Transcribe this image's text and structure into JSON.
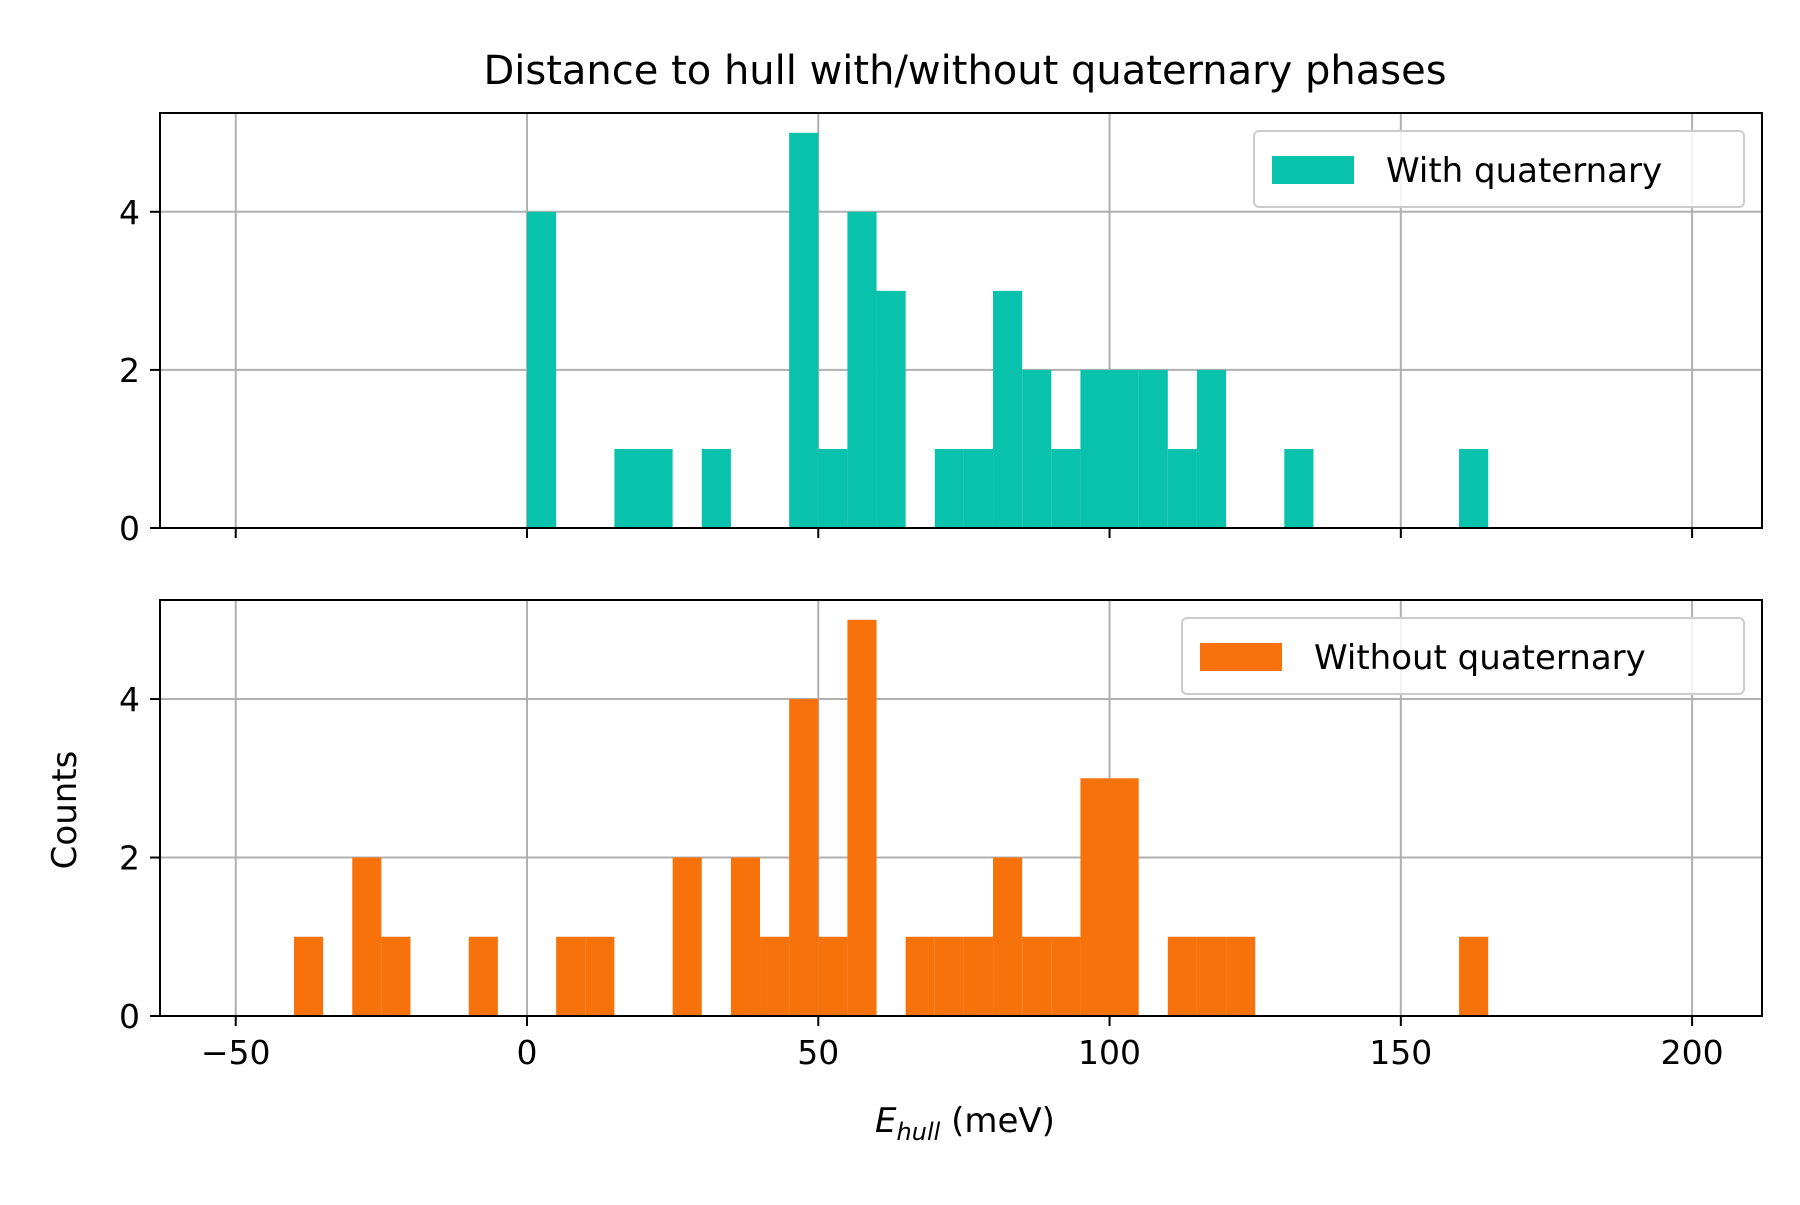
{
  "figure": {
    "title": "Distance to hull with/without quaternary phases",
    "xlabel_main": "E",
    "xlabel_sub": "hull",
    "xlabel_unit": " (meV)",
    "ylabel": "Counts"
  },
  "chart_data": [
    {
      "type": "bar",
      "name": "With quaternary",
      "color": "#09c2ac",
      "bin_width": 5,
      "bins": [
        {
          "x": 0,
          "count": 4
        },
        {
          "x": 15,
          "count": 1
        },
        {
          "x": 20,
          "count": 1
        },
        {
          "x": 30,
          "count": 1
        },
        {
          "x": 45,
          "count": 5
        },
        {
          "x": 50,
          "count": 1
        },
        {
          "x": 55,
          "count": 4
        },
        {
          "x": 60,
          "count": 3
        },
        {
          "x": 70,
          "count": 1
        },
        {
          "x": 75,
          "count": 1
        },
        {
          "x": 80,
          "count": 3
        },
        {
          "x": 85,
          "count": 2
        },
        {
          "x": 90,
          "count": 1
        },
        {
          "x": 95,
          "count": 2
        },
        {
          "x": 100,
          "count": 2
        },
        {
          "x": 105,
          "count": 2
        },
        {
          "x": 110,
          "count": 1
        },
        {
          "x": 115,
          "count": 2
        },
        {
          "x": 130,
          "count": 1
        },
        {
          "x": 160,
          "count": 1
        }
      ],
      "xlim": [
        -63,
        212
      ],
      "ylim": [
        0,
        5.25
      ],
      "xticks": [
        -50,
        0,
        50,
        100,
        150,
        200
      ],
      "yticks": [
        0,
        2,
        4
      ],
      "show_xtick_labels": false,
      "grid": true,
      "legend": "top-right"
    },
    {
      "type": "bar",
      "name": "Without quaternary",
      "color": "#f8720c",
      "bin_width": 5,
      "bins": [
        {
          "x": -40,
          "count": 1
        },
        {
          "x": -30,
          "count": 2
        },
        {
          "x": -25,
          "count": 1
        },
        {
          "x": -10,
          "count": 1
        },
        {
          "x": 5,
          "count": 1
        },
        {
          "x": 10,
          "count": 1
        },
        {
          "x": 25,
          "count": 2
        },
        {
          "x": 35,
          "count": 2
        },
        {
          "x": 40,
          "count": 1
        },
        {
          "x": 45,
          "count": 4
        },
        {
          "x": 50,
          "count": 1
        },
        {
          "x": 55,
          "count": 5
        },
        {
          "x": 65,
          "count": 1
        },
        {
          "x": 70,
          "count": 1
        },
        {
          "x": 75,
          "count": 1
        },
        {
          "x": 80,
          "count": 2
        },
        {
          "x": 85,
          "count": 1
        },
        {
          "x": 90,
          "count": 1
        },
        {
          "x": 95,
          "count": 3
        },
        {
          "x": 100,
          "count": 3
        },
        {
          "x": 110,
          "count": 1
        },
        {
          "x": 115,
          "count": 1
        },
        {
          "x": 120,
          "count": 1
        },
        {
          "x": 160,
          "count": 1
        }
      ],
      "xlim": [
        -63,
        212
      ],
      "ylim": [
        0,
        5.25
      ],
      "xticks": [
        -50,
        0,
        50,
        100,
        150,
        200
      ],
      "yticks": [
        0,
        2,
        4
      ],
      "show_xtick_labels": true,
      "grid": true,
      "legend": "top-right"
    }
  ]
}
